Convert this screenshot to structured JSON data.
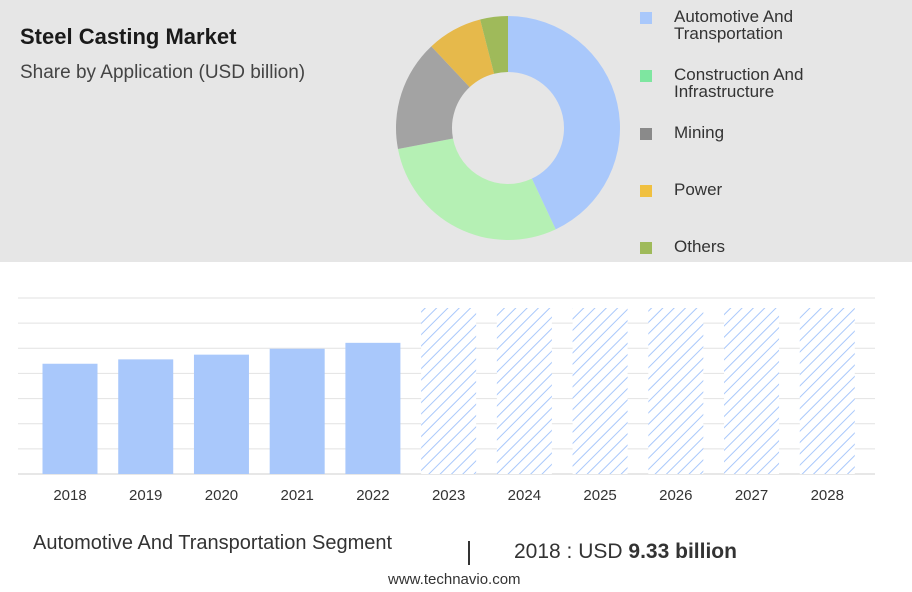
{
  "header": {
    "title": "Steel Casting Market",
    "subtitle": "Share by Application (USD billion)"
  },
  "chart_data": [
    {
      "type": "pie",
      "variant": "donut",
      "slices": [
        {
          "label": "Automotive And Transportation",
          "value": 43,
          "color": "#a9c8fb"
        },
        {
          "label": "Construction And Infrastructure",
          "value": 29,
          "color": "#b5f0b4"
        },
        {
          "label": "Mining",
          "value": 16,
          "color": "#a3a3a3"
        },
        {
          "label": "Power",
          "value": 8,
          "color": "#e6b94b"
        },
        {
          "label": "Others",
          "value": 4,
          "color": "#9fba5a"
        }
      ],
      "legend": {
        "placement": "right",
        "items": [
          {
            "label": "Automotive And Transportation",
            "color": "#a9c8fb"
          },
          {
            "label": "Construction And Infrastructure",
            "color": "#7ee6a0"
          },
          {
            "label": "Mining",
            "color": "#8a8a8a"
          },
          {
            "label": "Power",
            "color": "#f0c040"
          },
          {
            "label": "Others",
            "color": "#9fba5a"
          }
        ]
      }
    },
    {
      "type": "bar",
      "categories": [
        "2018",
        "2019",
        "2020",
        "2021",
        "2022",
        "2023",
        "2024",
        "2025",
        "2026",
        "2027",
        "2028"
      ],
      "values": [
        9.33,
        9.7,
        10.1,
        10.6,
        11.1,
        null,
        null,
        null,
        null,
        null,
        null
      ],
      "forecast_categories": [
        "2023",
        "2024",
        "2025",
        "2026",
        "2027",
        "2028"
      ],
      "ylim": [
        0,
        14
      ],
      "grid": true,
      "bar_color": "#a9c8fb",
      "forecast_style": "hatched"
    }
  ],
  "footer": {
    "segment": "Automotive And Transportation Segment",
    "separator": "|",
    "value_prefix": "2018 : USD ",
    "value_bold": "9.33 billion",
    "site": "www.technavio.com"
  }
}
